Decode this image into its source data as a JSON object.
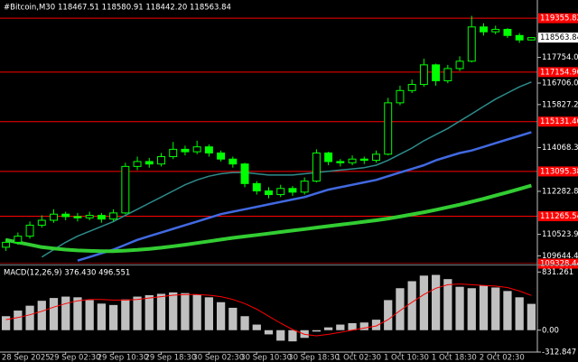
{
  "chart_data": {
    "type": "candlestick",
    "title": "#Bitcoin,M30",
    "subtitle": "118467.51 118580.91 118442.20 118563.84",
    "candle_color": "#00ff00",
    "categories": [
      null,
      "28 Sep 2025",
      null,
      null,
      null,
      "29 Sep 02:30",
      null,
      null,
      null,
      "29 Sep 10:30",
      null,
      null,
      null,
      "29 Sep 18:30",
      null,
      null,
      null,
      "30 Sep 02:30",
      null,
      null,
      null,
      "30 Sep 10:30",
      null,
      null,
      null,
      "30 Sep 18:30",
      null,
      null,
      null,
      "1 Oct 02:30",
      null,
      null,
      null,
      "1 Oct 10:30",
      null,
      null,
      null,
      "1 Oct 18:30",
      null,
      null,
      null,
      "2 Oct 02:30",
      null,
      null,
      null
    ],
    "open": [
      110000,
      110200,
      110450,
      110900,
      111100,
      111350,
      111250,
      111200,
      111300,
      111150,
      111400,
      113300,
      113500,
      113400,
      113700,
      114000,
      113900,
      114100,
      113850,
      113600,
      113400,
      112600,
      112300,
      112150,
      112400,
      112250,
      112700,
      113850,
      113500,
      113450,
      113600,
      113550,
      113800,
      115900,
      116400,
      116650,
      117450,
      116800,
      117300,
      117600,
      119000,
      118800,
      118900,
      118650,
      118467.51
    ],
    "high": [
      110350,
      110600,
      111050,
      111300,
      111550,
      111450,
      111400,
      111450,
      111400,
      111550,
      113450,
      113700,
      113650,
      113850,
      114300,
      114150,
      114350,
      114200,
      113950,
      113700,
      113450,
      112700,
      112450,
      112550,
      112500,
      112850,
      114000,
      113900,
      113600,
      113750,
      113700,
      113950,
      116100,
      116600,
      116850,
      117700,
      117500,
      117450,
      117800,
      119450,
      119150,
      119050,
      118950,
      118750,
      118580.91
    ],
    "low": [
      109850,
      110100,
      110350,
      110800,
      111000,
      111100,
      111050,
      111100,
      111000,
      111050,
      111350,
      113150,
      113250,
      113300,
      113600,
      113750,
      113800,
      113700,
      113500,
      113250,
      112450,
      112150,
      112000,
      112050,
      112100,
      112150,
      112650,
      113350,
      113300,
      113350,
      113400,
      113450,
      113750,
      115800,
      116300,
      116550,
      116600,
      116700,
      117200,
      117550,
      118650,
      118700,
      118550,
      118350,
      118442.2
    ],
    "close": [
      110200,
      110450,
      110900,
      111100,
      111350,
      111250,
      111200,
      111300,
      111150,
      111400,
      113300,
      113500,
      113400,
      113700,
      114000,
      113900,
      114100,
      113850,
      113600,
      113400,
      112600,
      112300,
      112150,
      112400,
      112250,
      112700,
      113850,
      113500,
      113450,
      113600,
      113550,
      113800,
      115900,
      116400,
      116650,
      117450,
      116800,
      117300,
      117600,
      119000,
      118800,
      118900,
      118650,
      118467.51,
      118563.84
    ],
    "series": [
      {
        "color": "#2e8b8b",
        "width": 1.5,
        "values": [
          null,
          null,
          null,
          109600,
          109900,
          110200,
          110450,
          110650,
          110850,
          111050,
          111300,
          111550,
          111800,
          112050,
          112300,
          112550,
          112750,
          112900,
          113000,
          113050,
          113050,
          113000,
          112950,
          112950,
          112950,
          113000,
          113050,
          113100,
          113150,
          113200,
          113250,
          113350,
          113550,
          113800,
          114050,
          114350,
          114600,
          114850,
          115150,
          115450,
          115750,
          116050,
          116300,
          116550,
          116750
        ]
      },
      {
        "color": "#4169e1",
        "width": 2.5,
        "values": [
          null,
          null,
          null,
          null,
          null,
          null,
          109450,
          109600,
          109750,
          109900,
          110100,
          110300,
          110450,
          110600,
          110750,
          110900,
          111050,
          111200,
          111350,
          111450,
          111550,
          111650,
          111750,
          111850,
          111950,
          112050,
          112200,
          112350,
          112450,
          112550,
          112650,
          112750,
          112900,
          113050,
          113200,
          113350,
          113550,
          113700,
          113850,
          113950,
          114100,
          114250,
          114400,
          114550,
          114700
        ]
      },
      {
        "color": "#32cd32",
        "width": 4,
        "values": [
          110300,
          110200,
          110100,
          110000,
          109950,
          109900,
          109870,
          109850,
          109840,
          109840,
          109860,
          109890,
          109930,
          109980,
          110040,
          110100,
          110170,
          110240,
          110310,
          110380,
          110440,
          110500,
          110560,
          110620,
          110680,
          110740,
          110800,
          110860,
          110920,
          110980,
          111040,
          111100,
          111170,
          111250,
          111340,
          111430,
          111530,
          111630,
          111740,
          111860,
          111980,
          112110,
          112240,
          112380,
          112520
        ]
      }
    ],
    "ylim": [
      109330,
      120100
    ],
    "yticks": [
      117754.08,
      116706.06,
      115827.25,
      114068.35,
      112282.88,
      110523.94,
      109644.45
    ],
    "levels": [
      119355.82,
      117154.96,
      115131.46,
      113095.38,
      111265.54,
      109328.44
    ],
    "level_color": "#ff0000",
    "macd": {
      "title": "MACD(12,26,9) 376.430 496.551",
      "hist_color": "#c0c0c0",
      "signal_color": "#ff0000",
      "ylim": [
        -312.847,
        900
      ],
      "yticks": [
        831.261,
        {
          "value": 0,
          "label": "0.00"
        },
        -312.847
      ],
      "histogram": [
        200,
        280,
        350,
        420,
        460,
        480,
        470,
        430,
        380,
        360,
        440,
        480,
        500,
        520,
        540,
        530,
        510,
        470,
        400,
        320,
        200,
        80,
        -60,
        -150,
        -160,
        -110,
        -20,
        40,
        80,
        100,
        110,
        150,
        430,
        600,
        700,
        780,
        790,
        730,
        620,
        600,
        640,
        610,
        560,
        470,
        376.43
      ],
      "signal": [
        150,
        180,
        220,
        270,
        330,
        380,
        420,
        440,
        440,
        430,
        430,
        440,
        460,
        480,
        500,
        510,
        510,
        500,
        480,
        440,
        380,
        300,
        200,
        100,
        10,
        -60,
        -80,
        -60,
        -30,
        0,
        30,
        60,
        150,
        280,
        400,
        510,
        600,
        650,
        660,
        650,
        640,
        630,
        610,
        560,
        496.551
      ]
    }
  }
}
